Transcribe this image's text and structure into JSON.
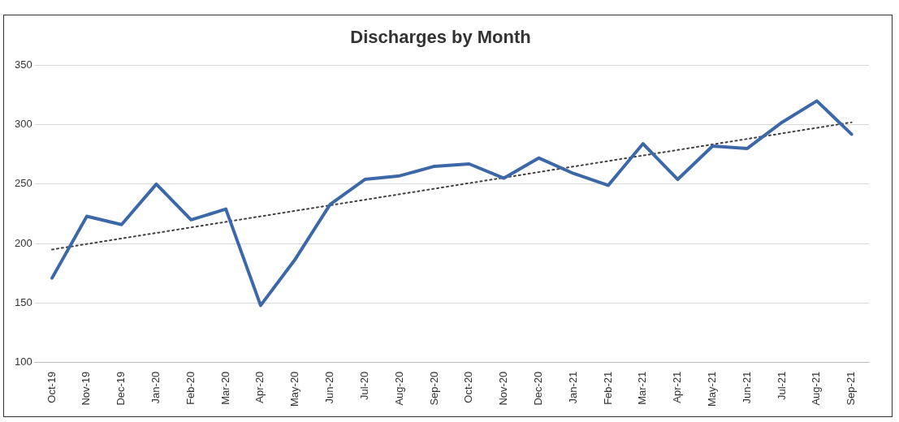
{
  "chart_data": {
    "type": "line",
    "title": "Discharges by Month",
    "categories": [
      "Oct-19",
      "Nov-19",
      "Dec-19",
      "Jan-20",
      "Feb-20",
      "Mar-20",
      "Apr-20",
      "May-20",
      "Jun-20",
      "Jul-20",
      "Aug-20",
      "Sep-20",
      "Oct-20",
      "Nov-20",
      "Dec-20",
      "Jan-21",
      "Feb-21",
      "Mar-21",
      "Apr-21",
      "May-21",
      "Jun-21",
      "Jul-21",
      "Aug-21",
      "Sep-21"
    ],
    "series": [
      {
        "color": "#3d68a8",
        "values": [
          171,
          223,
          216,
          250,
          220,
          229,
          148,
          187,
          233,
          254,
          257,
          265,
          267,
          255,
          272,
          259,
          249,
          284,
          254,
          282,
          280,
          302,
          320,
          292
        ]
      },
      {
        "type": "line",
        "color": "#404040",
        "line_style": "dotted",
        "x": [
          "Oct-19",
          "Sep-21"
        ],
        "values": [
          195,
          302
        ]
      }
    ],
    "ylim": [
      100,
      350
    ],
    "yticks": [
      100,
      150,
      200,
      250,
      300,
      350
    ],
    "grid": "y",
    "legend": false,
    "marker": "none",
    "line_style": "solid"
  }
}
